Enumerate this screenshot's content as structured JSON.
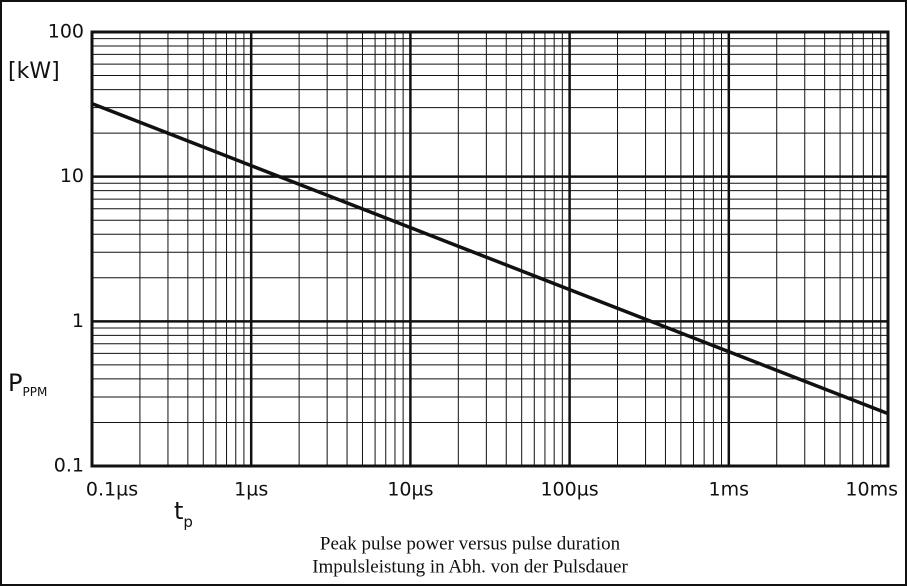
{
  "chart_data": {
    "type": "line",
    "y_unit": "[kW]",
    "y_label": "P",
    "y_label_sub": "PPM",
    "x_label": "t",
    "x_label_sub": "p",
    "caption": [
      "Peak pulse power versus pulse duration",
      "Impulsleistung in Abh. von der Pulsdauer"
    ],
    "x": [
      1e-07,
      0.01
    ],
    "series": [
      {
        "color": "#111111",
        "values": [
          32,
          0.23
        ]
      }
    ],
    "xlim": [
      1e-07,
      0.01
    ],
    "ylim": [
      0.1,
      100
    ],
    "xticks": [
      {
        "value": 1e-07,
        "label": "0.1µs"
      },
      {
        "value": 1e-06,
        "label": "1µs"
      },
      {
        "value": 1e-05,
        "label": "10µs"
      },
      {
        "value": 0.0001,
        "label": "100µs"
      },
      {
        "value": 0.001,
        "label": "1ms"
      },
      {
        "value": 0.01,
        "label": "10ms"
      }
    ],
    "yticks": [
      0.1,
      1,
      10,
      100
    ],
    "xscale": "log",
    "yscale": "log",
    "grid": true,
    "minor_grid": true
  }
}
